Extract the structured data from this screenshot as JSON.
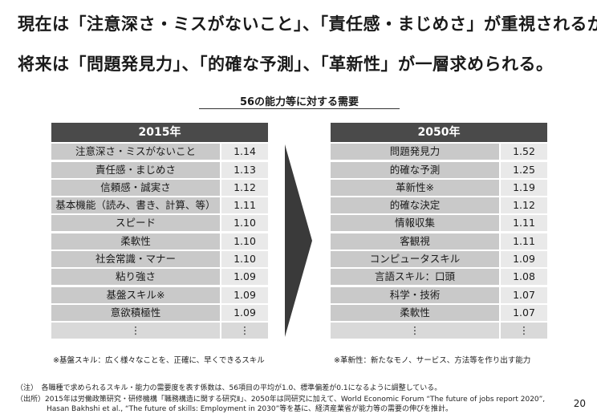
{
  "headline": {
    "line1": "現在は「注意深さ・ミスがないこと」、「責任感・まじめさ」が重視されるが、",
    "line2": "将来は「問題発見力」、「的確な予測」、「革新性」が一層求められる。"
  },
  "subtitle": "56の能力等に対する需要",
  "left_table": {
    "header": "2015年",
    "rows": [
      {
        "skill": "注意深さ・ミスがないこと",
        "value": "1.14"
      },
      {
        "skill": "責任感・まじめさ",
        "value": "1.13"
      },
      {
        "skill": "信頼感・誠実さ",
        "value": "1.12"
      },
      {
        "skill": "基本機能（読み、書き、計算、等）",
        "value": "1.11"
      },
      {
        "skill": "スピード",
        "value": "1.10"
      },
      {
        "skill": "柔軟性",
        "value": "1.10"
      },
      {
        "skill": "社会常識・マナー",
        "value": "1.10"
      },
      {
        "skill": "粘り強さ",
        "value": "1.09"
      },
      {
        "skill": "基盤スキル※",
        "value": "1.09"
      },
      {
        "skill": "意欲積極性",
        "value": "1.09"
      },
      {
        "skill": "⋮",
        "value": "⋮"
      }
    ],
    "note": "※基盤スキル：広く様々なことを、正確に、早くできるスキル"
  },
  "right_table": {
    "header": "2050年",
    "rows": [
      {
        "skill": "問題発見力",
        "value": "1.52"
      },
      {
        "skill": "的確な予測",
        "value": "1.25"
      },
      {
        "skill": "革新性※",
        "value": "1.19"
      },
      {
        "skill": "的確な決定",
        "value": "1.12"
      },
      {
        "skill": "情報収集",
        "value": "1.11"
      },
      {
        "skill": "客観視",
        "value": "1.11"
      },
      {
        "skill": "コンピュータスキル",
        "value": "1.09"
      },
      {
        "skill": "言語スキル：口頭",
        "value": "1.08"
      },
      {
        "skill": "科学・技術",
        "value": "1.07"
      },
      {
        "skill": "柔軟性",
        "value": "1.07"
      },
      {
        "skill": "⋮",
        "value": "⋮"
      }
    ],
    "note": "※革新性：新たなモノ、サービス、方法等を作り出す能力"
  },
  "footnotes": {
    "line1": "（注）　各職種で求められるスキル・能力の需要度を表す係数は、56項目の平均が1.0、標準偏差が0.1になるように調整している。",
    "line2": "（出所）2015年は労働政策研究・研修機構「職務構造に関する研究Ⅱ」、2050年は同研究に加えて、World Economic Forum “The future of jobs report 2020”,",
    "line3": "Hasan Bakhshi et al., “The future of skills: Employment in 2030”等を基に、経済産業省が能力等の需要の伸びを推計。"
  },
  "page_number": "20"
}
